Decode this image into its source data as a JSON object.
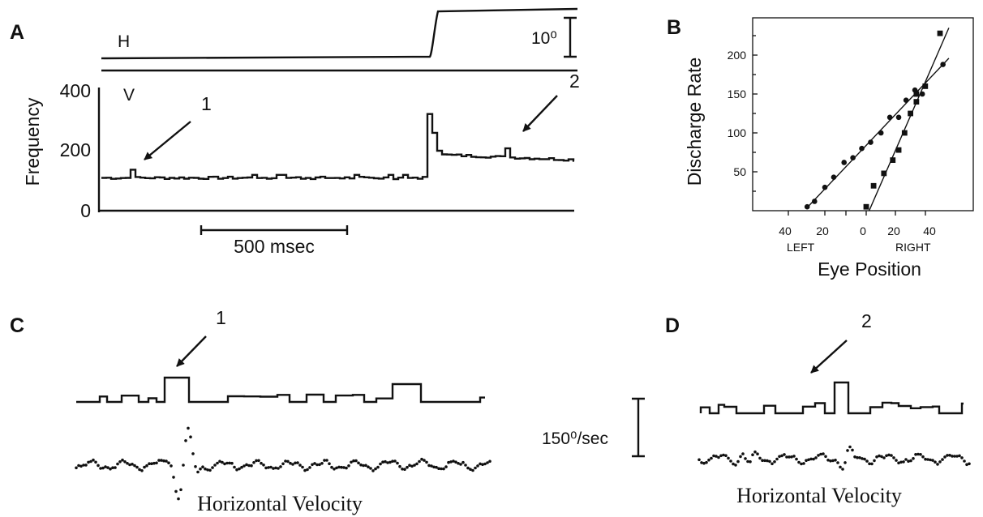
{
  "chart_data": [
    {
      "panel": "A",
      "type": "line",
      "trace_labels": [
        "H",
        "V"
      ],
      "position_scale_label": "10⁰",
      "ylabel": "Frequency",
      "yticks": [
        "0",
        "200",
        "400"
      ],
      "ylim": [
        0,
        400
      ],
      "time_scale_label": "500 msec",
      "annotations": [
        "1",
        "2"
      ],
      "series": [
        {
          "t": [
            0,
            110,
            230,
            340,
            400,
            405,
            412,
            420,
            500,
            600,
            700,
            780
          ],
          "values": [
            108,
            108,
            110,
            112,
            112,
            350,
            240,
            185,
            180,
            178,
            175,
            170
          ]
        }
      ]
    },
    {
      "panel": "B",
      "type": "scatter",
      "xlabel": "Eye Position",
      "ylabel": "Discharge Rate",
      "xtick_labels": [
        "40",
        "20",
        "",
        "0",
        "20",
        "40"
      ],
      "direction_labels": [
        "LEFT",
        "RIGHT"
      ],
      "yticks": [
        "50",
        "100",
        "150",
        "200"
      ],
      "series": [
        {
          "marker": "circle",
          "x": [
            -40,
            -35,
            -28,
            -22,
            -15,
            -9,
            -3,
            3,
            10,
            16,
            22,
            27,
            33,
            38,
            52
          ],
          "y": [
            5,
            12,
            30,
            43,
            62,
            68,
            80,
            88,
            100,
            120,
            120,
            142,
            155,
            150,
            188
          ],
          "fit": [
            [
              -40,
              4
            ],
            [
              56,
              196
            ]
          ]
        },
        {
          "marker": "square",
          "x": [
            0,
            5,
            12,
            18,
            22,
            26,
            30,
            34,
            34,
            40,
            50
          ],
          "y": [
            5,
            32,
            48,
            65,
            78,
            100,
            125,
            140,
            150,
            160,
            228
          ],
          "fit": [
            [
              2,
              0
            ],
            [
              56,
              235
            ]
          ]
        }
      ]
    },
    {
      "panel": "C",
      "type": "line",
      "annotation": "1",
      "caption": "Horizontal Velocity"
    },
    {
      "panel": "D",
      "type": "line",
      "annotation": "2",
      "caption": "Horizontal Velocity",
      "velocity_scale_label": "150⁰/sec"
    }
  ]
}
